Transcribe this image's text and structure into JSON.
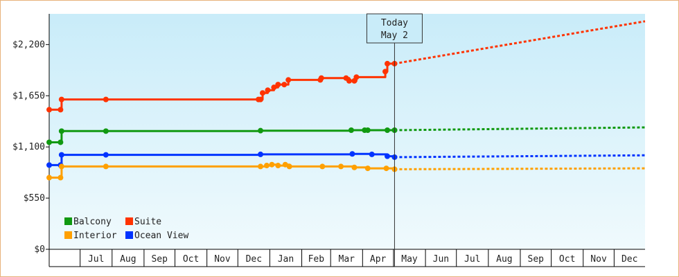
{
  "chart_data": {
    "type": "line",
    "y_axis": {
      "min": 0,
      "max": 2530,
      "ticks": [
        0,
        550,
        1100,
        1650,
        2200
      ],
      "tick_labels": [
        "$0",
        "$550",
        "$1,100",
        "$1,650",
        "$2,200"
      ]
    },
    "x_axis": {
      "start": "2024-06-01",
      "end": "2025-12-31",
      "month_labels": [
        "Jul",
        "Aug",
        "Sep",
        "Oct",
        "Nov",
        "Dec",
        "Jan",
        "Feb",
        "Mar",
        "Apr",
        "May",
        "Jun",
        "Jul",
        "Aug",
        "Sep",
        "Oct",
        "Nov",
        "Dec"
      ],
      "month_starts": [
        "2024-07-01",
        "2024-08-01",
        "2024-09-01",
        "2024-10-01",
        "2024-11-01",
        "2024-12-01",
        "2025-01-01",
        "2025-02-01",
        "2025-03-01",
        "2025-04-01",
        "2025-05-01",
        "2025-06-01",
        "2025-07-01",
        "2025-08-01",
        "2025-09-01",
        "2025-10-01",
        "2025-11-01",
        "2025-12-01",
        "2026-01-01"
      ]
    },
    "today": {
      "date": "2025-05-02",
      "label_line1": "Today",
      "label_line2": "May 2"
    },
    "series": [
      {
        "name": "Suite",
        "color": "#ff3300",
        "points": [
          [
            "2024-06-01",
            1500
          ],
          [
            "2024-06-12",
            1500
          ],
          [
            "2024-06-13",
            1610
          ],
          [
            "2024-07-26",
            1610
          ],
          [
            "2024-12-21",
            1610
          ],
          [
            "2024-12-23",
            1610
          ],
          [
            "2024-12-25",
            1680
          ],
          [
            "2024-12-30",
            1710
          ],
          [
            "2025-01-05",
            1740
          ],
          [
            "2025-01-09",
            1770
          ],
          [
            "2025-01-15",
            1770
          ],
          [
            "2025-01-19",
            1820
          ],
          [
            "2025-02-19",
            1820
          ],
          [
            "2025-02-20",
            1840
          ],
          [
            "2025-03-16",
            1840
          ],
          [
            "2025-03-19",
            1810
          ],
          [
            "2025-03-24",
            1810
          ],
          [
            "2025-03-26",
            1850
          ],
          [
            "2025-04-23",
            1910
          ],
          [
            "2025-04-25",
            1995
          ],
          [
            "2025-05-02",
            1995
          ]
        ],
        "forecast": [
          [
            "2025-05-02",
            1995
          ],
          [
            "2025-12-31",
            2450
          ]
        ]
      },
      {
        "name": "Balcony",
        "color": "#119911",
        "points": [
          [
            "2024-06-01",
            1150
          ],
          [
            "2024-06-12",
            1150
          ],
          [
            "2024-06-13",
            1270
          ],
          [
            "2024-07-26",
            1270
          ],
          [
            "2024-12-23",
            1275
          ],
          [
            "2025-03-21",
            1280
          ],
          [
            "2025-04-03",
            1280
          ],
          [
            "2025-04-06",
            1280
          ],
          [
            "2025-04-25",
            1280
          ],
          [
            "2025-05-02",
            1280
          ]
        ],
        "forecast": [
          [
            "2025-05-02",
            1280
          ],
          [
            "2025-12-31",
            1310
          ]
        ]
      },
      {
        "name": "Ocean View",
        "color": "#0033ff",
        "points": [
          [
            "2024-06-01",
            905
          ],
          [
            "2024-06-12",
            905
          ],
          [
            "2024-06-13",
            1015
          ],
          [
            "2024-07-26",
            1015
          ],
          [
            "2024-12-23",
            1020
          ],
          [
            "2025-03-22",
            1025
          ],
          [
            "2025-04-10",
            1020
          ],
          [
            "2025-04-25",
            1000
          ],
          [
            "2025-05-02",
            990
          ]
        ],
        "forecast": [
          [
            "2025-05-02",
            990
          ],
          [
            "2025-12-31",
            1010
          ]
        ]
      },
      {
        "name": "Interior",
        "color": "#ffa000",
        "points": [
          [
            "2024-06-01",
            770
          ],
          [
            "2024-06-12",
            770
          ],
          [
            "2024-06-13",
            890
          ],
          [
            "2024-07-26",
            890
          ],
          [
            "2024-12-23",
            890
          ],
          [
            "2024-12-29",
            900
          ],
          [
            "2025-01-03",
            910
          ],
          [
            "2025-01-09",
            900
          ],
          [
            "2025-01-16",
            910
          ],
          [
            "2025-01-20",
            890
          ],
          [
            "2025-02-21",
            890
          ],
          [
            "2025-03-11",
            890
          ],
          [
            "2025-03-24",
            880
          ],
          [
            "2025-04-06",
            870
          ],
          [
            "2025-04-24",
            870
          ],
          [
            "2025-05-02",
            860
          ]
        ],
        "forecast": [
          [
            "2025-05-02",
            860
          ],
          [
            "2025-12-31",
            870
          ]
        ]
      }
    ],
    "legend": {
      "placement": "bottom-left",
      "items": [
        {
          "name": "Balcony",
          "color": "#119911"
        },
        {
          "name": "Suite",
          "color": "#ff3300"
        },
        {
          "name": "Interior",
          "color": "#ffa000"
        },
        {
          "name": "Ocean View",
          "color": "#0033ff"
        }
      ]
    },
    "grid": false,
    "background_gradient": [
      "#c9ecf9",
      "#f0fafd"
    ]
  }
}
